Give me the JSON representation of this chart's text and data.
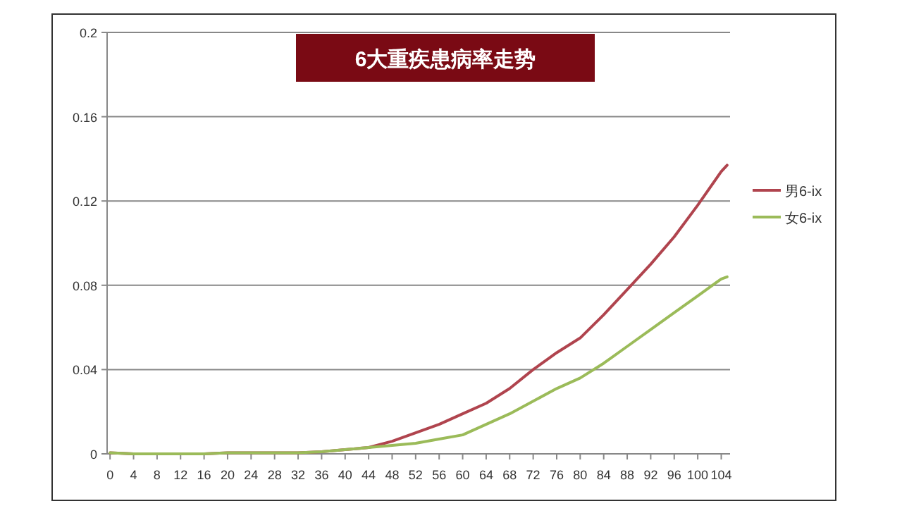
{
  "chart_data": {
    "type": "line",
    "title": "6大重疾患病率走势",
    "x": [
      0,
      4,
      8,
      12,
      16,
      20,
      24,
      28,
      32,
      36,
      40,
      44,
      48,
      52,
      56,
      60,
      64,
      68,
      72,
      76,
      80,
      84,
      88,
      92,
      96,
      100,
      104,
      105
    ],
    "series": [
      {
        "name": "男6-ix",
        "color": "#b0444e",
        "values": [
          0.0005,
          0,
          0,
          0,
          0,
          0.0005,
          0.0005,
          0.0005,
          0.0005,
          0.001,
          0.002,
          0.003,
          0.006,
          0.01,
          0.014,
          0.019,
          0.024,
          0.031,
          0.04,
          0.048,
          0.055,
          0.066,
          0.078,
          0.09,
          0.103,
          0.118,
          0.134,
          0.137
        ]
      },
      {
        "name": "女6-ix",
        "color": "#9bbb59",
        "values": [
          0.0005,
          0,
          0,
          0,
          0,
          0.0005,
          0.0005,
          0.0005,
          0.0005,
          0.001,
          0.002,
          0.003,
          0.004,
          0.005,
          0.007,
          0.009,
          0.014,
          0.019,
          0.025,
          0.031,
          0.036,
          0.043,
          0.051,
          0.059,
          0.067,
          0.075,
          0.083,
          0.084
        ]
      }
    ],
    "xlim": [
      -0.5,
      105.5
    ],
    "xticks": [
      0,
      4,
      8,
      12,
      16,
      20,
      24,
      28,
      32,
      36,
      40,
      44,
      48,
      52,
      56,
      60,
      64,
      68,
      72,
      76,
      80,
      84,
      88,
      92,
      96,
      100,
      104
    ],
    "ylim": [
      0,
      0.2
    ],
    "yticks": [
      0,
      0.04,
      0.08,
      0.12,
      0.16,
      0.2
    ],
    "grid": "y",
    "legend": "right",
    "marker": "none",
    "line_style": "solid"
  }
}
